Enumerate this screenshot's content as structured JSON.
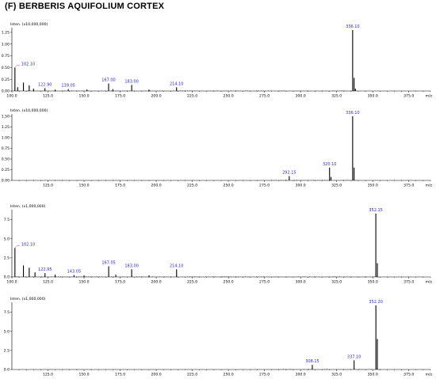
{
  "figure": {
    "title": "(F) BERBERIS AQUIFOLIUM CORTEX"
  },
  "chart_data": [
    {
      "type": "bar",
      "inten_label": "Inten. (x10,000,000)",
      "xlabel": "m/z",
      "xlim": [
        100,
        390
      ],
      "ylim": [
        0,
        1.3
      ],
      "yticks": [
        0.0,
        0.25,
        0.5,
        0.75,
        1.0,
        1.25
      ],
      "ytick_labels": [
        "0.00",
        "0.25",
        "0.50",
        "0.75",
        "1.00",
        "1.25"
      ],
      "xticks": [
        100,
        125,
        150,
        175,
        200,
        225,
        250,
        275,
        300,
        325,
        350,
        375
      ],
      "xtick_labels": [
        "100.0",
        "125.0",
        "150.0",
        "175.0",
        "200.0",
        "225.0",
        "250.0",
        "275.0",
        "300.0",
        "325.0",
        "350.0",
        "375.0"
      ],
      "peaks": [
        {
          "mz": 102.1,
          "value": 0.5,
          "label": "102.10"
        },
        {
          "mz": 104.0,
          "value": 0.08
        },
        {
          "mz": 108.0,
          "value": 0.18
        },
        {
          "mz": 112.0,
          "value": 0.12
        },
        {
          "mz": 115.0,
          "value": 0.05
        },
        {
          "mz": 122.9,
          "value": 0.06,
          "label": "122.90"
        },
        {
          "mz": 130.0,
          "value": 0.03
        },
        {
          "mz": 139.05,
          "value": 0.04,
          "label": "139.05"
        },
        {
          "mz": 152.0,
          "value": 0.03
        },
        {
          "mz": 167.0,
          "value": 0.16,
          "label": "167.00"
        },
        {
          "mz": 170.0,
          "value": 0.04
        },
        {
          "mz": 183.0,
          "value": 0.13,
          "label": "183.00"
        },
        {
          "mz": 195.0,
          "value": 0.03
        },
        {
          "mz": 214.1,
          "value": 0.08,
          "label": "214.10"
        },
        {
          "mz": 336.1,
          "value": 1.3,
          "label": "336.10"
        },
        {
          "mz": 337.1,
          "value": 0.28
        },
        {
          "mz": 338.0,
          "value": 0.05
        }
      ]
    },
    {
      "type": "bar",
      "inten_label": "Inten. (x10,000,000)",
      "xlabel": "m/z",
      "xlim": [
        100,
        390
      ],
      "ylim": [
        0,
        1.5
      ],
      "yticks": [
        0.0,
        0.25,
        0.5,
        0.75,
        1.0,
        1.25,
        1.5
      ],
      "ytick_labels": [
        "0.00",
        "0.25",
        "0.50",
        "0.75",
        "1.00",
        "1.25",
        "1.50"
      ],
      "xticks": [
        125,
        150,
        175,
        200,
        225,
        250,
        275,
        300,
        325,
        350,
        375
      ],
      "xtick_labels": [
        "125.0",
        "150.0",
        "175.0",
        "200.0",
        "225.0",
        "250.0",
        "275.0",
        "300.0",
        "325.0",
        "350.0",
        "375.0"
      ],
      "peaks": [
        {
          "mz": 292.15,
          "value": 0.1,
          "label": "292.15"
        },
        {
          "mz": 320.1,
          "value": 0.3,
          "label": "320.10"
        },
        {
          "mz": 321.1,
          "value": 0.08
        },
        {
          "mz": 336.1,
          "value": 1.5,
          "label": "336.10"
        },
        {
          "mz": 337.1,
          "value": 0.3
        }
      ]
    },
    {
      "type": "bar",
      "inten_label": "Inten. (x1,000,000)",
      "xlabel": "m/z",
      "xlim": [
        100,
        390
      ],
      "ylim": [
        0,
        8.5
      ],
      "yticks": [
        0.0,
        2.5,
        5.0,
        7.5
      ],
      "ytick_labels": [
        "0.0",
        "2.5",
        "5.0",
        "7.5"
      ],
      "xticks": [
        100,
        125,
        150,
        175,
        200,
        225,
        250,
        275,
        300,
        325,
        350,
        375
      ],
      "xtick_labels": [
        "100.0",
        "125.0",
        "150.0",
        "175.0",
        "200.0",
        "225.0",
        "250.0",
        "275.0",
        "300.0",
        "325.0",
        "350.0",
        "375.0"
      ],
      "peaks": [
        {
          "mz": 102.1,
          "value": 3.8,
          "label": "102.10"
        },
        {
          "mz": 108.0,
          "value": 1.5
        },
        {
          "mz": 112.0,
          "value": 1.2
        },
        {
          "mz": 116.0,
          "value": 0.6
        },
        {
          "mz": 122.95,
          "value": 0.5,
          "label": "122.95"
        },
        {
          "mz": 130.0,
          "value": 0.3
        },
        {
          "mz": 143.05,
          "value": 0.25,
          "label": "143.05"
        },
        {
          "mz": 150.0,
          "value": 0.2
        },
        {
          "mz": 167.05,
          "value": 1.4,
          "label": "167.05"
        },
        {
          "mz": 172.0,
          "value": 0.3
        },
        {
          "mz": 183.0,
          "value": 1.0,
          "label": "183.00"
        },
        {
          "mz": 195.0,
          "value": 0.2
        },
        {
          "mz": 214.1,
          "value": 1.0,
          "label": "214.10"
        },
        {
          "mz": 352.15,
          "value": 8.3,
          "label": "352.15"
        },
        {
          "mz": 353.2,
          "value": 1.8
        }
      ]
    },
    {
      "type": "bar",
      "inten_label": "Inten. (x1,000,000)",
      "xlabel": "m/z",
      "xlim": [
        100,
        390
      ],
      "ylim": [
        0,
        8.5
      ],
      "yticks": [
        0.0,
        2.5,
        5.0,
        7.5
      ],
      "ytick_labels": [
        "0.0",
        "2.5",
        "5.0",
        "7.5"
      ],
      "xticks": [
        125,
        150,
        175,
        200,
        225,
        250,
        275,
        300,
        325,
        350,
        375
      ],
      "xtick_labels": [
        "125.0",
        "150.0",
        "175.0",
        "200.0",
        "225.0",
        "250.0",
        "275.0",
        "300.0",
        "325.0",
        "350.0",
        "375.0"
      ],
      "peaks": [
        {
          "mz": 308.15,
          "value": 0.6,
          "label": "308.15"
        },
        {
          "mz": 337.1,
          "value": 1.2,
          "label": "337.10"
        },
        {
          "mz": 352.2,
          "value": 8.4,
          "label": "352.20"
        },
        {
          "mz": 353.2,
          "value": 4.0
        }
      ]
    }
  ]
}
